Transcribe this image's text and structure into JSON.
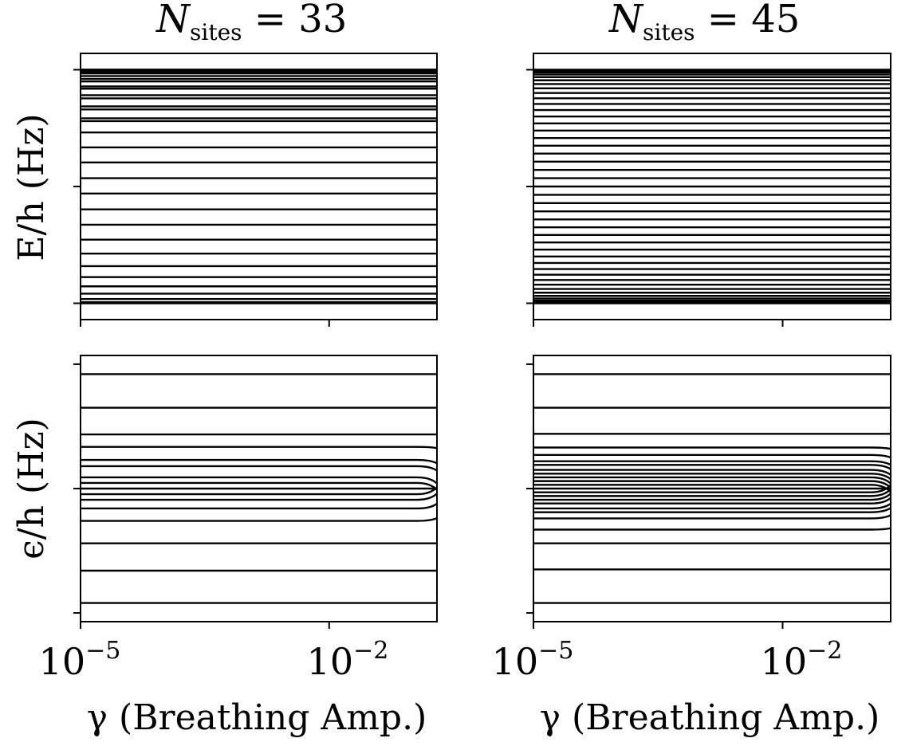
{
  "panels_text": {
    "p1_title_main": "N",
    "p1_title_sub": "sites",
    "p1_title_rest": " = 33",
    "p2_title_main": "N",
    "p2_title_sub": "sites",
    "p2_title_rest": " = 45",
    "ylabel_top": "E/h (Hz)",
    "ylabel_bottom": "ϵ/h (Hz)",
    "xlabel": "γ (Breathing Amp.)",
    "xtick_base": "10",
    "xtick1_exp": "−5",
    "xtick2_exp": "−2"
  },
  "chart_data": [
    {
      "type": "line",
      "panel": "top-left",
      "title": "N_sites = 33",
      "ylabel": "E/h (Hz)",
      "xscale": "log",
      "xlim": [
        1e-05,
        0.2
      ],
      "xticks": [
        1e-05,
        0.01
      ],
      "ylim": [
        -1.14,
        1.14
      ],
      "yticks": [
        -1,
        0,
        1
      ],
      "series_count": 33,
      "levels": [
        -1.0,
        -0.991,
        -0.964,
        -0.918,
        -0.855,
        -0.776,
        -0.682,
        -0.575,
        -0.455,
        -0.327,
        -0.196,
        -0.06,
        0.071,
        0.206,
        0.335,
        0.463,
        0.584,
        0.686,
        0.782,
        0.857,
        0.921,
        0.968,
        0.986,
        1.0,
        1.0,
        0.993,
        0.975,
        0.946,
        0.9,
        0.838,
        0.755,
        0.66,
        0.56
      ],
      "behavior": "constant across gamma"
    },
    {
      "type": "line",
      "panel": "top-right",
      "title": "N_sites = 45",
      "xscale": "log",
      "xlim": [
        1e-05,
        0.2
      ],
      "xticks": [
        1e-05,
        0.01
      ],
      "ylim": [
        -1.14,
        1.14
      ],
      "yticks": [
        -1,
        0,
        1
      ],
      "series_count": 45,
      "behavior": "constant across gamma"
    },
    {
      "type": "line",
      "panel": "bottom-left",
      "ylabel": "ϵ/h (Hz)",
      "xlabel": "γ (Breathing Amp.)",
      "xscale": "log",
      "xlim": [
        1e-05,
        0.2
      ],
      "xticks": [
        1e-05,
        0.01
      ],
      "ylim": [
        -1.07,
        1.07
      ],
      "yticks": [
        -1,
        0,
        1
      ],
      "levels": [
        0.92,
        0.65,
        0.435,
        0.335,
        0.23,
        0.18,
        0.09,
        0.045,
        0.0,
        -0.045,
        -0.09,
        -0.16,
        -0.26,
        -0.44,
        -0.66,
        -0.92
      ],
      "behavior": "constant with slight convergence toward 0 near gamma max"
    },
    {
      "type": "line",
      "panel": "bottom-right",
      "xlabel": "γ (Breathing Amp.)",
      "xscale": "log",
      "xlim": [
        1e-05,
        0.2
      ],
      "xticks": [
        1e-05,
        0.01
      ],
      "ylim": [
        -1.07,
        1.07
      ],
      "yticks": [
        -1,
        0,
        1
      ],
      "levels": [
        0.92,
        0.65,
        0.44,
        0.33,
        0.27,
        0.22,
        0.19,
        0.15,
        0.12,
        0.09,
        0.06,
        0.03,
        0.0,
        -0.03,
        -0.06,
        -0.09,
        -0.12,
        -0.16,
        -0.19,
        -0.24,
        -0.33,
        -0.44,
        -0.65,
        -0.92
      ],
      "behavior": "constant with convergence toward 0 near gamma max"
    }
  ]
}
